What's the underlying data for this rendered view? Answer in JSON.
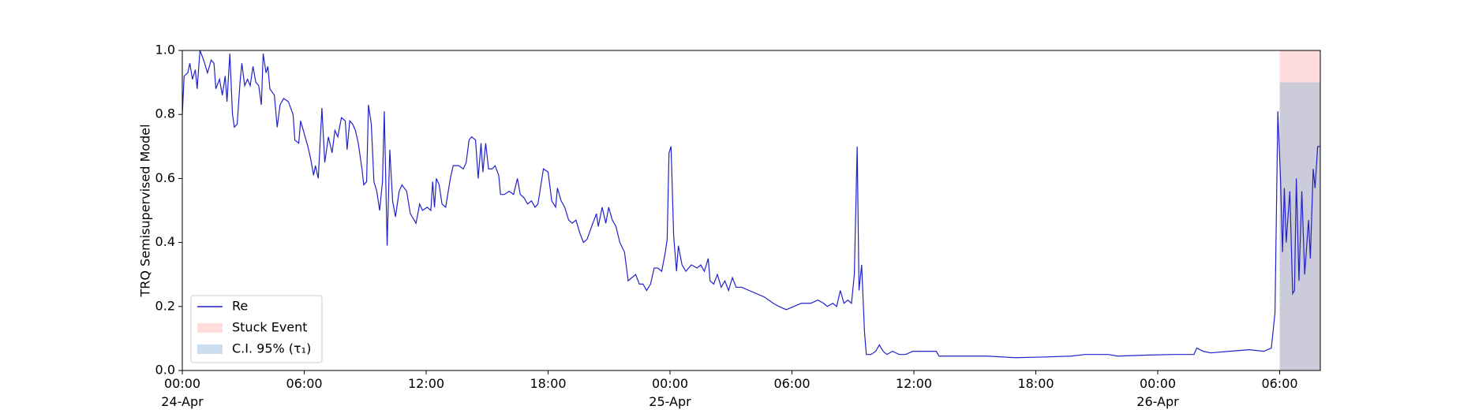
{
  "chart_data": {
    "type": "line",
    "ylabel": "TRQ Semisupervised Model",
    "xlim": [
      0,
      56.0
    ],
    "xticks": [
      {
        "value": 0,
        "label": "00:00",
        "date": "24-Apr"
      },
      {
        "value": 6,
        "label": "06:00"
      },
      {
        "value": 12,
        "label": "12:00"
      },
      {
        "value": 18,
        "label": "18:00"
      },
      {
        "value": 24,
        "label": "00:00",
        "date": "25-Apr"
      },
      {
        "value": 30,
        "label": "06:00"
      },
      {
        "value": 36,
        "label": "12:00"
      },
      {
        "value": 42,
        "label": "18:00"
      },
      {
        "value": 48,
        "label": "00:00",
        "date": "26-Apr"
      },
      {
        "value": 54,
        "label": "06:00"
      }
    ],
    "ylim": [
      0,
      1
    ],
    "yticks": [
      {
        "value": 0,
        "label": "0.0"
      },
      0.2,
      0.4,
      0.6,
      0.8,
      {
        "value": 1,
        "label": "1.0"
      }
    ],
    "legend": "lower left",
    "x": [
      0,
      0.09,
      0.27,
      0.37,
      0.5,
      0.64,
      0.73,
      0.87,
      1.05,
      1.24,
      1.42,
      1.56,
      1.65,
      1.83,
      1.97,
      2.11,
      2.2,
      2.34,
      2.47,
      2.56,
      2.7,
      2.84,
      2.93,
      3.07,
      3.21,
      3.34,
      3.48,
      3.62,
      3.76,
      3.89,
      3.98,
      4.12,
      4.21,
      4.31,
      4.53,
      4.67,
      4.81,
      4.99,
      5.22,
      5.45,
      5.54,
      5.73,
      5.82,
      6.0,
      6.18,
      6.32,
      6.46,
      6.55,
      6.69,
      6.87,
      7.01,
      7.19,
      7.37,
      7.51,
      7.65,
      7.83,
      8.02,
      8.11,
      8.24,
      8.38,
      8.52,
      8.66,
      8.84,
      8.93,
      9.07,
      9.16,
      9.3,
      9.43,
      9.57,
      9.71,
      9.85,
      9.94,
      10.08,
      10.21,
      10.35,
      10.49,
      10.67,
      10.81,
      11.04,
      11.22,
      11.5,
      11.68,
      11.82,
      12.05,
      12.23,
      12.32,
      12.41,
      12.5,
      12.64,
      12.78,
      12.96,
      13.19,
      13.33,
      13.6,
      13.83,
      13.97,
      14.11,
      14.24,
      14.43,
      14.56,
      14.7,
      14.79,
      14.93,
      15.07,
      15.25,
      15.39,
      15.57,
      15.66,
      15.85,
      16.08,
      16.3,
      16.49,
      16.63,
      16.81,
      16.99,
      17.18,
      17.36,
      17.5,
      17.77,
      18.0,
      18.18,
      18.37,
      18.46,
      18.64,
      18.82,
      19.01,
      19.19,
      19.37,
      19.56,
      19.74,
      19.92,
      20.2,
      20.38,
      20.47,
      20.66,
      20.84,
      20.98,
      21.16,
      21.34,
      21.53,
      21.76,
      21.94,
      22.12,
      22.31,
      22.49,
      22.67,
      22.85,
      23.04,
      23.22,
      23.4,
      23.59,
      23.77,
      23.86,
      23.95,
      24.05,
      24.18,
      24.32,
      24.41,
      24.59,
      24.78,
      25.05,
      25.33,
      25.51,
      25.69,
      25.88,
      25.97,
      26.15,
      26.33,
      26.52,
      26.7,
      26.88,
      27.07,
      27.25,
      27.53,
      27.89,
      28.26,
      28.63,
      29.08,
      29.36,
      29.72,
      30.09,
      30.46,
      30.92,
      31.28,
      31.56,
      31.74,
      32.01,
      32.2,
      32.38,
      32.56,
      32.75,
      32.93,
      33.07,
      33.21,
      33.3,
      33.43,
      33.57,
      33.66,
      33.89,
      34.12,
      34.3,
      34.49,
      34.67,
      34.95,
      35.27,
      35.59,
      35.95,
      36.41,
      37.1,
      37.24,
      38.24,
      39.62,
      40.99,
      42.37,
      43.74,
      44.43,
      45.57,
      46.03,
      47.4,
      48.78,
      49.78,
      49.92,
      50.24,
      50.61,
      51.53,
      52.5,
      53.22,
      53.59,
      53.77,
      53.91,
      54.04,
      54.14,
      54.23,
      54.32,
      54.5,
      54.64,
      54.73,
      54.82,
      54.95,
      55.09,
      55.23,
      55.42,
      55.51,
      55.65,
      55.74,
      55.87,
      56.0
    ],
    "series": [
      {
        "name": "Re",
        "color": "#2121c8",
        "values": [
          0.8,
          0.92,
          0.93,
          0.96,
          0.91,
          0.94,
          0.88,
          1.0,
          0.97,
          0.93,
          0.97,
          0.96,
          0.88,
          0.91,
          0.86,
          0.92,
          0.84,
          0.99,
          0.8,
          0.76,
          0.77,
          0.9,
          0.96,
          0.89,
          0.91,
          0.89,
          0.95,
          0.9,
          0.89,
          0.83,
          0.99,
          0.93,
          0.95,
          0.88,
          0.86,
          0.76,
          0.83,
          0.85,
          0.84,
          0.8,
          0.72,
          0.71,
          0.78,
          0.74,
          0.7,
          0.66,
          0.61,
          0.64,
          0.6,
          0.82,
          0.65,
          0.73,
          0.68,
          0.75,
          0.73,
          0.79,
          0.78,
          0.69,
          0.78,
          0.77,
          0.75,
          0.71,
          0.63,
          0.58,
          0.59,
          0.83,
          0.77,
          0.59,
          0.56,
          0.5,
          0.59,
          0.81,
          0.39,
          0.69,
          0.53,
          0.48,
          0.56,
          0.58,
          0.56,
          0.49,
          0.46,
          0.52,
          0.5,
          0.51,
          0.5,
          0.59,
          0.51,
          0.6,
          0.58,
          0.52,
          0.51,
          0.6,
          0.64,
          0.64,
          0.63,
          0.65,
          0.72,
          0.73,
          0.72,
          0.6,
          0.71,
          0.62,
          0.71,
          0.63,
          0.63,
          0.64,
          0.61,
          0.55,
          0.55,
          0.56,
          0.55,
          0.6,
          0.55,
          0.54,
          0.52,
          0.53,
          0.51,
          0.52,
          0.63,
          0.62,
          0.53,
          0.51,
          0.57,
          0.53,
          0.51,
          0.47,
          0.46,
          0.47,
          0.43,
          0.4,
          0.41,
          0.46,
          0.49,
          0.45,
          0.51,
          0.46,
          0.51,
          0.47,
          0.45,
          0.4,
          0.37,
          0.28,
          0.29,
          0.3,
          0.27,
          0.27,
          0.25,
          0.27,
          0.32,
          0.32,
          0.31,
          0.37,
          0.41,
          0.68,
          0.7,
          0.42,
          0.31,
          0.39,
          0.33,
          0.31,
          0.33,
          0.32,
          0.33,
          0.31,
          0.35,
          0.28,
          0.27,
          0.3,
          0.26,
          0.28,
          0.25,
          0.29,
          0.26,
          0.26,
          0.25,
          0.24,
          0.23,
          0.21,
          0.2,
          0.19,
          0.2,
          0.21,
          0.21,
          0.22,
          0.21,
          0.2,
          0.21,
          0.2,
          0.25,
          0.21,
          0.22,
          0.21,
          0.3,
          0.7,
          0.25,
          0.33,
          0.12,
          0.05,
          0.05,
          0.06,
          0.08,
          0.06,
          0.05,
          0.06,
          0.05,
          0.05,
          0.06,
          0.06,
          0.06,
          0.045,
          0.045,
          0.045,
          0.04,
          0.042,
          0.045,
          0.05,
          0.05,
          0.045,
          0.048,
          0.05,
          0.05,
          0.07,
          0.06,
          0.055,
          0.06,
          0.065,
          0.06,
          0.07,
          0.18,
          0.81,
          0.6,
          0.37,
          0.57,
          0.4,
          0.56,
          0.24,
          0.25,
          0.6,
          0.28,
          0.56,
          0.3,
          0.47,
          0.35,
          0.63,
          0.57,
          0.7,
          0.7
        ]
      }
    ],
    "spans": [
      {
        "name": "Stuck Event",
        "color": "#ffb3b3",
        "x": [
          54,
          56.0
        ],
        "y": [
          0,
          1
        ]
      },
      {
        "name": "C.I. 95% (τ₁)",
        "color": "#8fb5d6",
        "x": [
          54,
          56.0
        ],
        "y": [
          0,
          0.9
        ]
      }
    ]
  }
}
